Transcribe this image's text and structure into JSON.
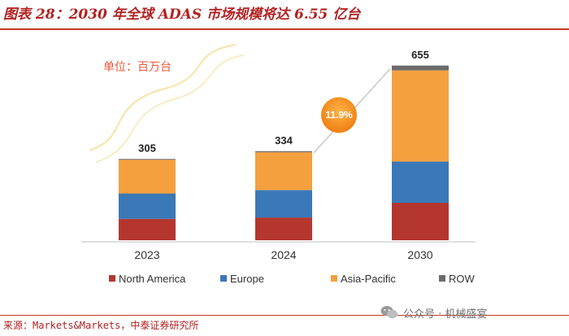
{
  "header": {
    "title": "图表 28：2030 年全球 ADAS 市场规模将达 6.55 亿台"
  },
  "source": {
    "text": "来源：Markets&Markets，中泰证券研究所"
  },
  "watermark": {
    "text": "公众号 · 机械盛宴"
  },
  "chart_data": {
    "type": "bar",
    "stacked": true,
    "title": "",
    "unit_label": "单位：百万台",
    "categories": [
      "2023",
      "2024",
      "2030"
    ],
    "totals": [
      "305",
      "334",
      "655"
    ],
    "ylim": [
      0,
      700
    ],
    "series": [
      {
        "name": "North America",
        "color": "#b5362e",
        "values": [
          80,
          85,
          140
        ]
      },
      {
        "name": "Europe",
        "color": "#3a78b8",
        "values": [
          95,
          103,
          155
        ]
      },
      {
        "name": "Asia-Pacific",
        "color": "#f4a03f",
        "values": [
          127,
          142,
          342
        ]
      },
      {
        "name": "ROW",
        "color": "#6b6b6b",
        "values": [
          3,
          4,
          18
        ]
      }
    ],
    "annotation": {
      "text": "11.9%",
      "from_category": "2024",
      "to_category": "2030",
      "color": "#f08a1c"
    },
    "grid": false,
    "legend_position": "bottom"
  }
}
